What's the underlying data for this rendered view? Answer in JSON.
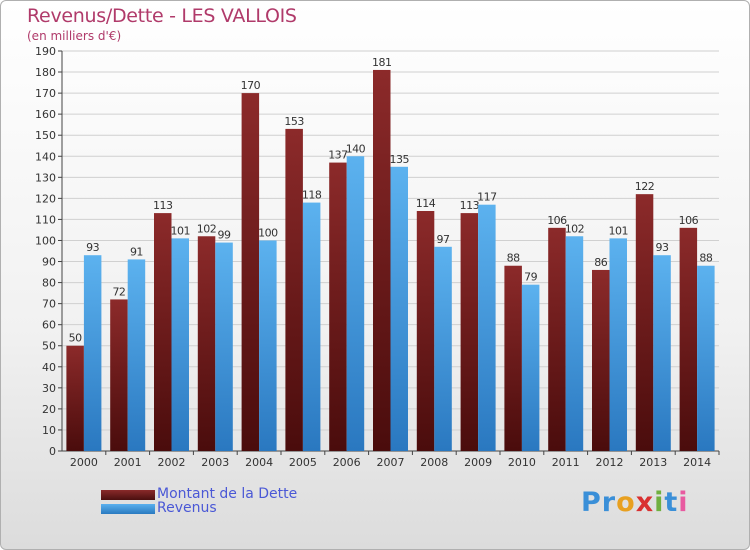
{
  "header": {
    "title": "Revenus/Dette - LES VALLOIS",
    "subtitle": "(en milliers d'€)"
  },
  "legend": {
    "items": [
      {
        "label": "Montant de la Dette",
        "color": "#6b1a1a"
      },
      {
        "label": "Revenus",
        "color": "#3a96dd"
      }
    ]
  },
  "logo": {
    "text": "Proxiti",
    "letters": [
      "P",
      "r",
      "o",
      "x",
      "i",
      "t",
      "i"
    ],
    "colors": [
      "#3a8fd8",
      "#3a8fd8",
      "#e8a020",
      "#d93030",
      "#70b040",
      "#3a8fd8",
      "#e85aa0"
    ]
  },
  "colors": {
    "dette": "#6b1a1a",
    "revenus": "#3a96dd",
    "axis": "#444444",
    "grid": "#d0d0d0",
    "label": "#333333"
  },
  "chart_data": {
    "type": "bar",
    "title": "Revenus/Dette - LES VALLOIS",
    "subtitle": "(en milliers d'€)",
    "categories": [
      "2000",
      "2001",
      "2002",
      "2003",
      "2004",
      "2005",
      "2006",
      "2007",
      "2008",
      "2009",
      "2010",
      "2011",
      "2012",
      "2013",
      "2014"
    ],
    "series": [
      {
        "name": "Montant de la Dette",
        "values": [
          50,
          72,
          113,
          102,
          170,
          153,
          137,
          181,
          114,
          113,
          88,
          106,
          86,
          122,
          106
        ]
      },
      {
        "name": "Revenus",
        "values": [
          93,
          91,
          101,
          99,
          100,
          118,
          140,
          135,
          97,
          117,
          79,
          102,
          101,
          93,
          88
        ]
      }
    ],
    "ylim": [
      0,
      190
    ],
    "yticks": [
      0,
      10,
      20,
      30,
      40,
      50,
      60,
      70,
      80,
      90,
      100,
      110,
      120,
      130,
      140,
      150,
      160,
      170,
      180,
      190
    ],
    "grid": true,
    "legend_position": "bottom-left"
  }
}
